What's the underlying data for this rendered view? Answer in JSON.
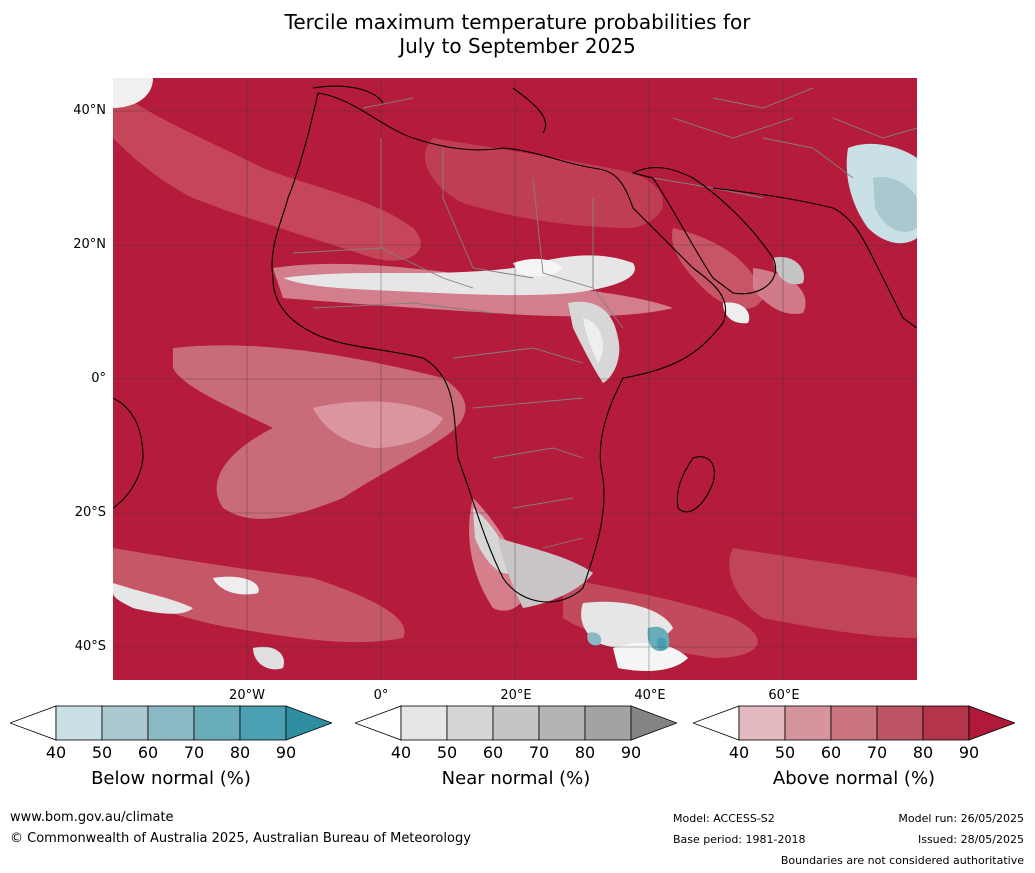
{
  "title": {
    "line1": "Tercile maximum temperature probabilities for",
    "line2": "July to September 2025"
  },
  "axes": {
    "lat_labels": [
      "40°N",
      "20°N",
      "0°",
      "20°S",
      "40°S"
    ],
    "lon_labels": [
      "20°W",
      "0°",
      "20°E",
      "40°E",
      "60°E"
    ]
  },
  "map": {
    "extent_lon": [
      -30,
      90
    ],
    "extent_lat": [
      -45,
      45
    ],
    "background_color": "#b51c3c",
    "coastline_color": "#000000",
    "border_color": "#808080",
    "grid_color": "#333333"
  },
  "legends": [
    {
      "name": "below-normal",
      "title": "Below normal (%)",
      "ticks": [
        "40",
        "50",
        "60",
        "70",
        "80",
        "90"
      ],
      "colors": [
        "#ffffff",
        "#c9e0e6",
        "#a9c8cf",
        "#8ab8c3",
        "#6aadba",
        "#4a9fb2",
        "#2e8fa3"
      ]
    },
    {
      "name": "near-normal",
      "title": "Near normal (%)",
      "ticks": [
        "40",
        "50",
        "60",
        "70",
        "80",
        "90"
      ],
      "colors": [
        "#ffffff",
        "#e6e6e6",
        "#d6d6d6",
        "#c5c5c5",
        "#b4b4b4",
        "#a3a3a3",
        "#848484"
      ]
    },
    {
      "name": "above-normal",
      "title": "Above normal (%)",
      "ticks": [
        "40",
        "50",
        "60",
        "70",
        "80",
        "90"
      ],
      "colors": [
        "#ffffff",
        "#e3b8bf",
        "#d6949f",
        "#ca7480",
        "#bd5465",
        "#b43449",
        "#b01a38"
      ]
    }
  ],
  "footer": {
    "website": "www.bom.gov.au/climate",
    "copyright": "© Commonwealth of Australia 2025, Australian Bureau of Meteorology",
    "model": "Model: ACCESS-S2",
    "base_period": "Base period: 1981-2018",
    "model_run": "Model run: 26/05/2025",
    "issued": "Issued: 28/05/2025",
    "disclaimer": "Boundaries are not considered authoritative"
  }
}
